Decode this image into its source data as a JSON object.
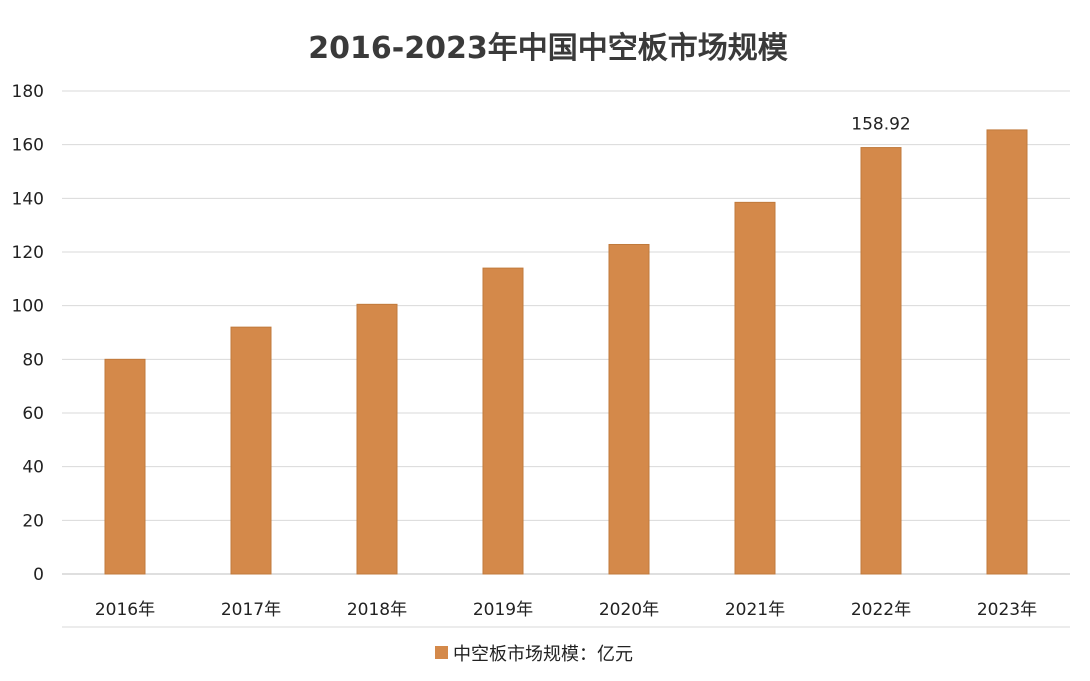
{
  "chart_data": {
    "type": "bar",
    "title": "2016-2023年中国中空板市场规模",
    "categories": [
      "2016年",
      "2017年",
      "2018年",
      "2019年",
      "2020年",
      "2021年",
      "2022年",
      "2023年"
    ],
    "series": [
      {
        "name": "中空板市场规模：亿元",
        "values": [
          80,
          92,
          100.5,
          114,
          122.8,
          138.5,
          158.92,
          165.5
        ],
        "color": "#d4894a"
      }
    ],
    "data_labels": [
      {
        "category": "2022年",
        "text": "158.92"
      }
    ],
    "y_ticks": [
      "0",
      "20",
      "40",
      "60",
      "80",
      "100",
      "120",
      "140",
      "160",
      "180"
    ],
    "ylim": [
      0,
      180
    ],
    "xlabel": "",
    "ylabel": "",
    "grid": true,
    "legend_position": "bottom"
  }
}
